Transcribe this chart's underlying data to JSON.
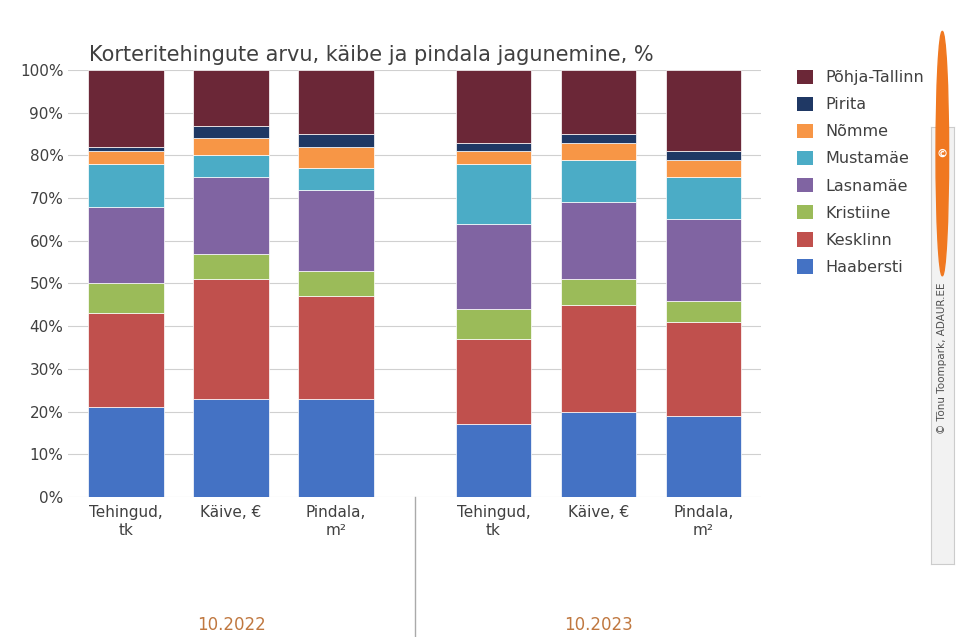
{
  "title": "Korteritehingute arvu, käibe ja pindala jagunemine, %",
  "districts": [
    "Haabersti",
    "Kesklinn",
    "Kristiine",
    "Lasnamäe",
    "Mustamäe",
    "Nõmme",
    "Pirita",
    "Põhja-Tallinn"
  ],
  "colors": [
    "#4472C4",
    "#C0504D",
    "#9BBB59",
    "#8064A2",
    "#4BACC6",
    "#F79646",
    "#1F3864",
    "#6B2737"
  ],
  "data_2022": [
    [
      21,
      22,
      7,
      18,
      10,
      3,
      1,
      18
    ],
    [
      23,
      28,
      6,
      18,
      5,
      4,
      3,
      13
    ],
    [
      23,
      24,
      6,
      19,
      5,
      5,
      3,
      15
    ]
  ],
  "data_2023": [
    [
      17,
      20,
      7,
      20,
      14,
      3,
      2,
      17
    ],
    [
      20,
      25,
      6,
      18,
      10,
      4,
      2,
      15
    ],
    [
      19,
      22,
      5,
      19,
      10,
      4,
      2,
      19
    ]
  ],
  "bar_xlabels": [
    "Tehingud,\ntk",
    "Käive, €",
    "Pindala,\nm²",
    "Tehingud,\ntk",
    "Käive, €",
    "Pindala,\nm²"
  ],
  "group_labels": [
    "10.2022",
    "10.2023"
  ],
  "group_label_color": "#C07840",
  "title_fontsize": 15,
  "background_color": "#FFFFFF",
  "watermark": "© Tõnu Toompark, ADAUR.EE",
  "strip_bg": "#F2F2F2",
  "strip_border": "#CCCCCC"
}
